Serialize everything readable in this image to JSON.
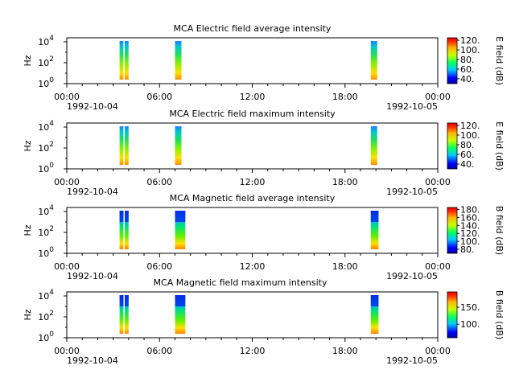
{
  "chart_data": [
    {
      "type": "heatmap",
      "title": "MCA  Electric field average intensity",
      "ylabel": "Hz",
      "y_scale": "log",
      "y_ticks": [
        "10^0",
        "10^2",
        "10^4"
      ],
      "x_ticks": [
        "00:00",
        "06:00",
        "12:00",
        "18:00",
        "00:00"
      ],
      "x_dates": [
        "1992-10-04",
        "1992-10-05"
      ],
      "xlim": [
        "1992-10-04 00:00",
        "1992-10-05 00:00"
      ],
      "colorbar": {
        "label": "E field (dB)",
        "ticks": [
          "40.",
          "60.",
          "80.",
          "100.",
          "120."
        ],
        "range": [
          30,
          125
        ]
      },
      "data_segments": [
        {
          "start": "1992-10-04 03:25",
          "end": "1992-10-04 03:40"
        },
        {
          "start": "1992-10-04 03:45",
          "end": "1992-10-04 04:00"
        },
        {
          "start": "1992-10-04 07:00",
          "end": "1992-10-04 07:25"
        },
        {
          "start": "1992-10-04 19:40",
          "end": "1992-10-04 20:05"
        }
      ]
    },
    {
      "type": "heatmap",
      "title": "MCA  Electric field maximum intensity",
      "ylabel": "Hz",
      "y_scale": "log",
      "y_ticks": [
        "10^0",
        "10^2",
        "10^4"
      ],
      "x_ticks": [
        "00:00",
        "06:00",
        "12:00",
        "18:00",
        "00:00"
      ],
      "x_dates": [
        "1992-10-04",
        "1992-10-05"
      ],
      "xlim": [
        "1992-10-04 00:00",
        "1992-10-05 00:00"
      ],
      "colorbar": {
        "label": "E field (dB)",
        "ticks": [
          "40.",
          "60.",
          "80.",
          "100.",
          "120."
        ],
        "range": [
          30,
          125
        ]
      },
      "data_segments": [
        {
          "start": "1992-10-04 03:25",
          "end": "1992-10-04 03:40"
        },
        {
          "start": "1992-10-04 03:45",
          "end": "1992-10-04 04:00"
        },
        {
          "start": "1992-10-04 07:00",
          "end": "1992-10-04 07:25"
        },
        {
          "start": "1992-10-04 19:40",
          "end": "1992-10-04 20:05"
        }
      ]
    },
    {
      "type": "heatmap",
      "title": "MCA  Magnetic field average intensity",
      "ylabel": "Hz",
      "y_scale": "log",
      "y_ticks": [
        "10^0",
        "10^2",
        "10^4"
      ],
      "x_ticks": [
        "00:00",
        "06:00",
        "12:00",
        "18:00",
        "00:00"
      ],
      "x_dates": [
        "1992-10-04",
        "1992-10-05"
      ],
      "xlim": [
        "1992-10-04 00:00",
        "1992-10-05 00:00"
      ],
      "colorbar": {
        "label": "B field (dB)",
        "ticks": [
          "80.",
          "100.",
          "120.",
          "140.",
          "160.",
          "180."
        ],
        "range": [
          70,
          185
        ]
      },
      "data_segments": [
        {
          "start": "1992-10-04 03:25",
          "end": "1992-10-04 03:40"
        },
        {
          "start": "1992-10-04 03:45",
          "end": "1992-10-04 04:00"
        },
        {
          "start": "1992-10-04 07:00",
          "end": "1992-10-04 07:40"
        },
        {
          "start": "1992-10-04 19:40",
          "end": "1992-10-04 20:10"
        }
      ]
    },
    {
      "type": "heatmap",
      "title": "MCA  Magnetic field maximum intensity",
      "ylabel": "Hz",
      "y_scale": "log",
      "y_ticks": [
        "10^0",
        "10^2",
        "10^4"
      ],
      "x_ticks": [
        "00:00",
        "06:00",
        "12:00",
        "18:00",
        "00:00"
      ],
      "x_dates": [
        "1992-10-04",
        "1992-10-05"
      ],
      "xlim": [
        "1992-10-04 00:00",
        "1992-10-05 00:00"
      ],
      "colorbar": {
        "label": "B field (dB)",
        "ticks": [
          "100.",
          "150."
        ],
        "range": [
          60,
          195
        ]
      },
      "data_segments": [
        {
          "start": "1992-10-04 03:25",
          "end": "1992-10-04 03:40"
        },
        {
          "start": "1992-10-04 03:45",
          "end": "1992-10-04 04:00"
        },
        {
          "start": "1992-10-04 07:00",
          "end": "1992-10-04 07:40"
        },
        {
          "start": "1992-10-04 19:40",
          "end": "1992-10-04 20:10"
        }
      ]
    }
  ]
}
